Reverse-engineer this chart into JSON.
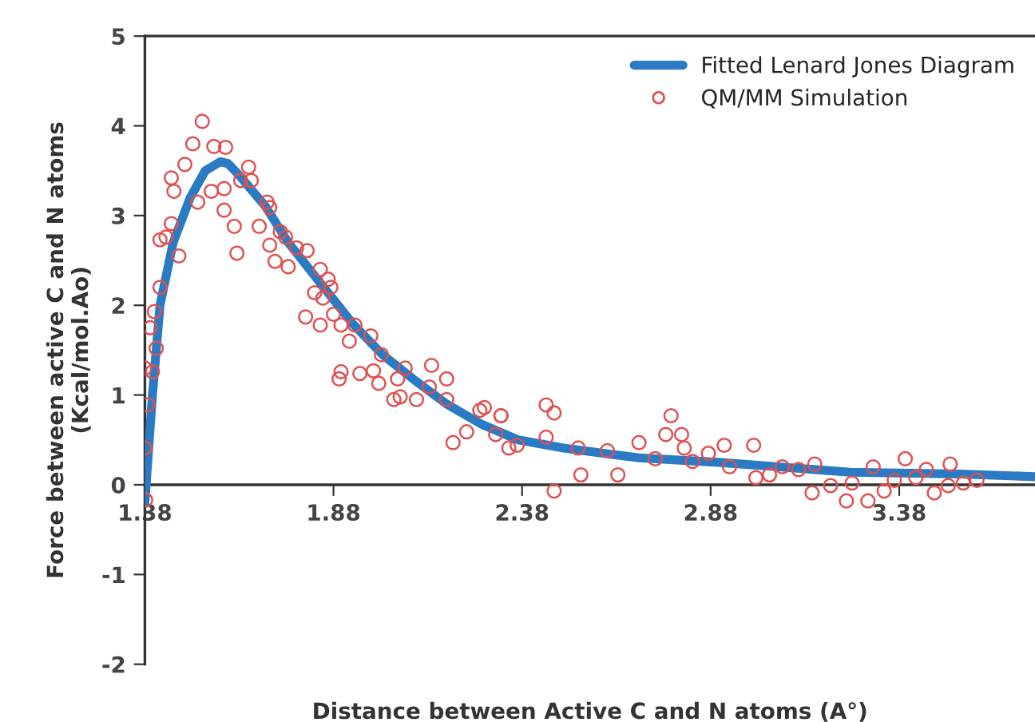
{
  "chart_data": {
    "type": "scatter",
    "xlabel": "Distance between Active C and N atoms (A°)",
    "ylabel": "Force between active C and N atoms\n(Kcal/mol.Ao)",
    "xlim": [
      1.38,
      3.74
    ],
    "ylim": [
      -2,
      5
    ],
    "xticks": [
      1.38,
      1.88,
      2.38,
      2.88,
      3.38
    ],
    "yticks": [
      -2,
      -1,
      0,
      1,
      2,
      3,
      4,
      5
    ],
    "grid": false,
    "legend": "top right",
    "series": [
      {
        "name": "Fitted Lenard Jones Diagram",
        "type": "line",
        "color": "#2a7bc4",
        "marker": "none",
        "line_style": "solid",
        "x": [
          1.38,
          1.4,
          1.42,
          1.455,
          1.5,
          1.54,
          1.58,
          1.6,
          1.63,
          1.7,
          1.76,
          1.845,
          1.93,
          2.01,
          2.1,
          2.18,
          2.27,
          2.37,
          2.49,
          2.69,
          2.9,
          3.06,
          3.25,
          3.54,
          3.74
        ],
        "values": [
          -0.2,
          1.0,
          2.0,
          2.7,
          3.2,
          3.5,
          3.6,
          3.58,
          3.45,
          3.1,
          2.7,
          2.25,
          1.8,
          1.45,
          1.15,
          0.9,
          0.68,
          0.5,
          0.41,
          0.3,
          0.25,
          0.2,
          0.14,
          0.12,
          0.09
        ]
      },
      {
        "name": "QM/MM Simulation",
        "color": "#e05050",
        "marker": "circle",
        "x": [
          1.382,
          1.38,
          1.387,
          1.38,
          1.4,
          1.41,
          1.394,
          1.405,
          1.42,
          1.42,
          1.436,
          1.45,
          1.47,
          1.45,
          1.457,
          1.486,
          1.507,
          1.532,
          1.52,
          1.563,
          1.594,
          1.556,
          1.59,
          1.59,
          1.617,
          1.624,
          1.655,
          1.662,
          1.634,
          1.704,
          1.711,
          1.683,
          1.739,
          1.753,
          1.711,
          1.725,
          1.782,
          1.81,
          1.76,
          1.845,
          1.866,
          1.873,
          1.83,
          1.852,
          1.806,
          1.845,
          1.88,
          1.9,
          1.937,
          1.922,
          1.979,
          1.895,
          1.9,
          1.95,
          1.986,
          2.007,
          2.0,
          2.05,
          2.07,
          2.04,
          2.057,
          2.1,
          2.14,
          2.134,
          2.18,
          2.18,
          2.197,
          2.233,
          2.268,
          2.31,
          2.324,
          2.345,
          2.28,
          2.324,
          2.367,
          2.444,
          2.465,
          2.444,
          2.465,
          2.529,
          2.536,
          2.606,
          2.634,
          2.69,
          2.733,
          2.775,
          2.761,
          2.803,
          2.81,
          2.832,
          2.874,
          2.916,
          2.93,
          2.994,
          3.0,
          3.036,
          3.07,
          3.113,
          3.156,
          3.149,
          3.198,
          3.24,
          3.255,
          3.311,
          3.297,
          3.34,
          3.367,
          3.396,
          3.424,
          3.452,
          3.473,
          3.515,
          3.51,
          3.55,
          3.586
        ],
        "values": [
          -0.17,
          0.41,
          0.89,
          1.3,
          1.26,
          1.52,
          1.75,
          1.93,
          2.2,
          2.73,
          2.76,
          2.91,
          2.55,
          3.42,
          3.27,
          3.57,
          3.8,
          4.05,
          3.15,
          3.77,
          3.76,
          3.27,
          3.3,
          3.06,
          2.88,
          2.58,
          3.54,
          3.39,
          3.39,
          3.15,
          3.09,
          2.88,
          2.82,
          2.76,
          2.67,
          2.49,
          2.64,
          2.61,
          2.43,
          2.4,
          2.29,
          2.2,
          2.14,
          2.08,
          1.87,
          1.78,
          1.9,
          1.78,
          1.78,
          1.6,
          1.66,
          1.18,
          1.26,
          1.24,
          1.27,
          1.45,
          1.13,
          1.18,
          1.3,
          0.95,
          0.98,
          0.95,
          1.33,
          1.09,
          1.18,
          0.95,
          0.47,
          0.59,
          0.83,
          0.56,
          0.77,
          0.41,
          0.86,
          0.77,
          0.44,
          0.89,
          0.8,
          0.53,
          -0.07,
          0.41,
          0.11,
          0.38,
          0.11,
          0.47,
          0.29,
          0.77,
          0.56,
          0.56,
          0.41,
          0.26,
          0.35,
          0.44,
          0.2,
          0.44,
          0.08,
          0.11,
          0.2,
          0.17,
          0.23,
          -0.09,
          -0.01,
          -0.18,
          0.02,
          0.2,
          -0.18,
          -0.07,
          0.05,
          0.29,
          0.08,
          0.17,
          -0.09,
          0.23,
          -0.01,
          0.02,
          0.05
        ]
      }
    ]
  }
}
